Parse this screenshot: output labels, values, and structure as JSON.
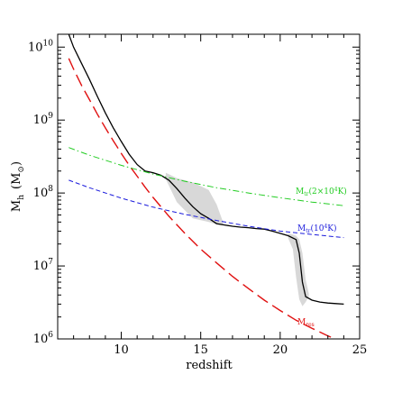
{
  "chart_data": {
    "type": "line",
    "xlabel": "redshift",
    "ylabel": "M_h (M_⊙)",
    "ylabel_main": "M",
    "ylabel_sub": "h",
    "ylabel_unit_open": "(M",
    "ylabel_unit_sun": "⊙",
    "ylabel_unit_close": ")",
    "xlim": [
      6,
      25
    ],
    "ylim": [
      1000000,
      15000000000
    ],
    "yscale": "log",
    "grid": false,
    "legend": "none",
    "x_ticks": [
      {
        "value": 10,
        "label": "10"
      },
      {
        "value": 15,
        "label": "15"
      },
      {
        "value": 20,
        "label": "20"
      },
      {
        "value": 25,
        "label": "25"
      }
    ],
    "y_ticks": [
      {
        "value": 1000000,
        "label": "10",
        "exp": "6"
      },
      {
        "value": 10000000,
        "label": "10",
        "exp": "7"
      },
      {
        "value": 100000000,
        "label": "10",
        "exp": "8"
      },
      {
        "value": 1000000000,
        "label": "10",
        "exp": "9"
      },
      {
        "value": 10000000000,
        "label": "10",
        "exp": "10"
      }
    ],
    "series": [
      {
        "key": "mvir",
        "color": "#000000",
        "style": "solid",
        "x": [
          6.7,
          7.0,
          7.5,
          8.0,
          8.5,
          9.0,
          9.5,
          10.0,
          10.5,
          11.0,
          11.5,
          12.0,
          12.5,
          13.0,
          13.5,
          14.0,
          14.5,
          15.0,
          15.5,
          16.0,
          16.5,
          17.0,
          17.5,
          18.0,
          18.5,
          19.0,
          19.5,
          20.0,
          20.5,
          21.0,
          21.2,
          21.4,
          21.6,
          22.0,
          22.5,
          23.0,
          23.5,
          24.0
        ],
        "y": [
          15000000000,
          10000000000,
          6000000000,
          3600000000,
          2100000000,
          1250000000,
          780000000,
          510000000,
          340000000,
          245000000,
          200000000,
          190000000,
          175000000,
          150000000,
          115000000,
          85000000,
          65000000,
          52000000,
          45000000,
          38000000,
          36500000,
          35000000,
          34000000,
          33500000,
          32500000,
          32000000,
          30000000,
          28000000,
          26000000,
          23000000,
          15000000,
          6000000,
          3800000,
          3400000,
          3200000,
          3100000,
          3050000,
          3000000
        ]
      },
      {
        "key": "mres",
        "name": "M_res",
        "label_main": "M",
        "label_sub": "res",
        "color": "#e01010",
        "style": "longdash",
        "x": [
          6.7,
          7.0,
          7.5,
          8.0,
          8.5,
          9.0,
          9.5,
          10.0,
          10.5,
          11.0,
          11.5,
          12.0,
          13.0,
          14.0,
          15.0,
          16.0,
          17.0,
          18.0,
          19.0,
          20.0,
          21.0,
          22.0,
          23.0,
          24.0
        ],
        "y": [
          7000000000,
          5000000000,
          3000000000,
          1900000000,
          1200000000,
          780000000,
          520000000,
          350000000,
          240000000,
          170000000,
          120000000,
          87000000,
          48000000,
          28000000,
          17000000,
          11000000,
          7200000,
          4900000,
          3400000,
          2450000,
          1800000,
          1400000,
          1100000,
          900000
        ]
      },
      {
        "key": "mtr1",
        "name": "M_tr(10^4K)",
        "label_main": "M",
        "label_sub": "tr",
        "label_rest": "(10",
        "label_sup": "4",
        "label_end": "K)",
        "color": "#1a1adc",
        "style": "dashed",
        "x": [
          6.7,
          8.0,
          10.0,
          12.0,
          14.0,
          16.0,
          18.0,
          20.0,
          22.0,
          24.0
        ],
        "y": [
          150000000,
          118000000,
          85000000,
          64000000,
          51000000,
          42000000,
          35000000,
          30000000,
          27000000,
          24500000
        ]
      },
      {
        "key": "mtr2",
        "name": "M_tr(2×10^4K)",
        "label_main": "M",
        "label_sub": "tr",
        "label_rest": "(2×10",
        "label_sup": "4",
        "label_end": "K)",
        "color": "#22cc22",
        "style": "dashdot",
        "x": [
          6.7,
          8.0,
          10.0,
          12.0,
          14.0,
          16.0,
          18.0,
          20.0,
          22.0,
          24.0
        ],
        "y": [
          420000000,
          330000000,
          240000000,
          182000000,
          145000000,
          118000000,
          100000000,
          86000000,
          75000000,
          67000000
        ]
      }
    ],
    "shaded_regions": [
      {
        "key": "mvir-scatter-1",
        "color": "#d8d8d8",
        "x": [
          12.8,
          13.5,
          14.5,
          15.5,
          16.0,
          16.4
        ],
        "y_low": [
          155000000,
          75000000,
          45000000,
          40000000,
          37000000,
          36000000
        ],
        "y_high": [
          190000000,
          160000000,
          140000000,
          110000000,
          70000000,
          40000000
        ]
      },
      {
        "key": "mvir-scatter-2",
        "color": "#d8d8d8",
        "x": [
          20.5,
          20.8,
          21.0,
          21.2,
          21.4,
          21.6,
          21.8
        ],
        "y_low": [
          24000000,
          17000000,
          7000000,
          3500000,
          2800000,
          3200000,
          3800000
        ],
        "y_high": [
          28000000,
          27000000,
          26000000,
          23000000,
          15000000,
          6500000,
          4200000
        ]
      }
    ]
  }
}
